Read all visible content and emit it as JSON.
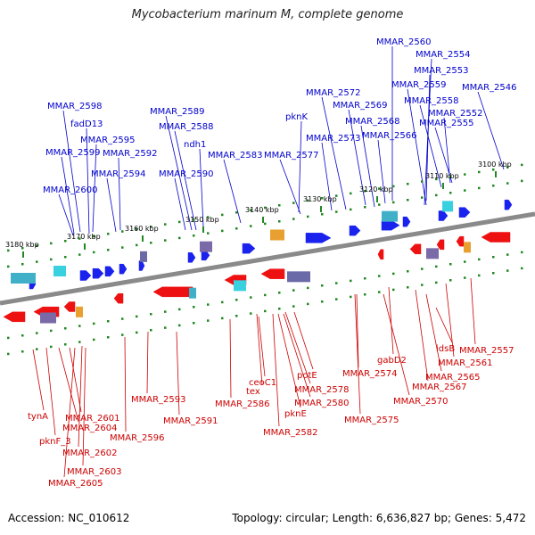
{
  "header": {
    "title": "Mycobacterium marinum M, complete genome"
  },
  "footer": {
    "accession": "Accession: NC_010612",
    "stats": "Topology: circular; Length: 6,636,827 bp; Genes: 5,472"
  },
  "colors": {
    "forward": "#1a22ee",
    "reverse": "#ee1111",
    "forward_label": "#0000cc",
    "reverse_label": "#cc0000",
    "backbone": "#808080",
    "tick": "#228822"
  },
  "kbp_ticks": [
    "3100 kbp",
    "3110 kbp",
    "3120 kbp",
    "3130 kbp",
    "3140 kbp",
    "3150 kbp",
    "3160 kbp",
    "3170 kbp",
    "3180 kbp"
  ],
  "forward_labels": [
    "MMAR_2560",
    "MMAR_2554",
    "MMAR_2553",
    "MMAR_2559",
    "MMAR_2546",
    "MMAR_2572",
    "MMAR_2558",
    "MMAR_2569",
    "MMAR_2552",
    "MMAR_2598",
    "MMAR_2589",
    "pknK",
    "MMAR_2568",
    "MMAR_2555",
    "fadD13",
    "MMAR_2588",
    "MMAR_2566",
    "MMAR_2573",
    "MMAR_2595",
    "ndh1",
    "MMAR_2599",
    "MMAR_2592",
    "MMAR_2583",
    "MMAR_2577",
    "MMAR_2594",
    "MMAR_2590",
    "MMAR_2600"
  ],
  "reverse_labels": [
    "MMAR_2557",
    "idsB",
    "MMAR_2561",
    "gabD2",
    "MMAR_2574",
    "MMAR_2565",
    "MMAR_2567",
    "ceoC1",
    "potE",
    "tex",
    "MMAR_2578",
    "MMAR_2593",
    "MMAR_2586",
    "MMAR_2580",
    "MMAR_2570",
    "pknE",
    "MMAR_2591",
    "tynA",
    "MMAR_2601",
    "MMAR_2575",
    "MMAR_2604",
    "MMAR_2582",
    "MMAR_2596",
    "pknF_3",
    "MMAR_2602",
    "MMAR_2603",
    "MMAR_2605"
  ]
}
